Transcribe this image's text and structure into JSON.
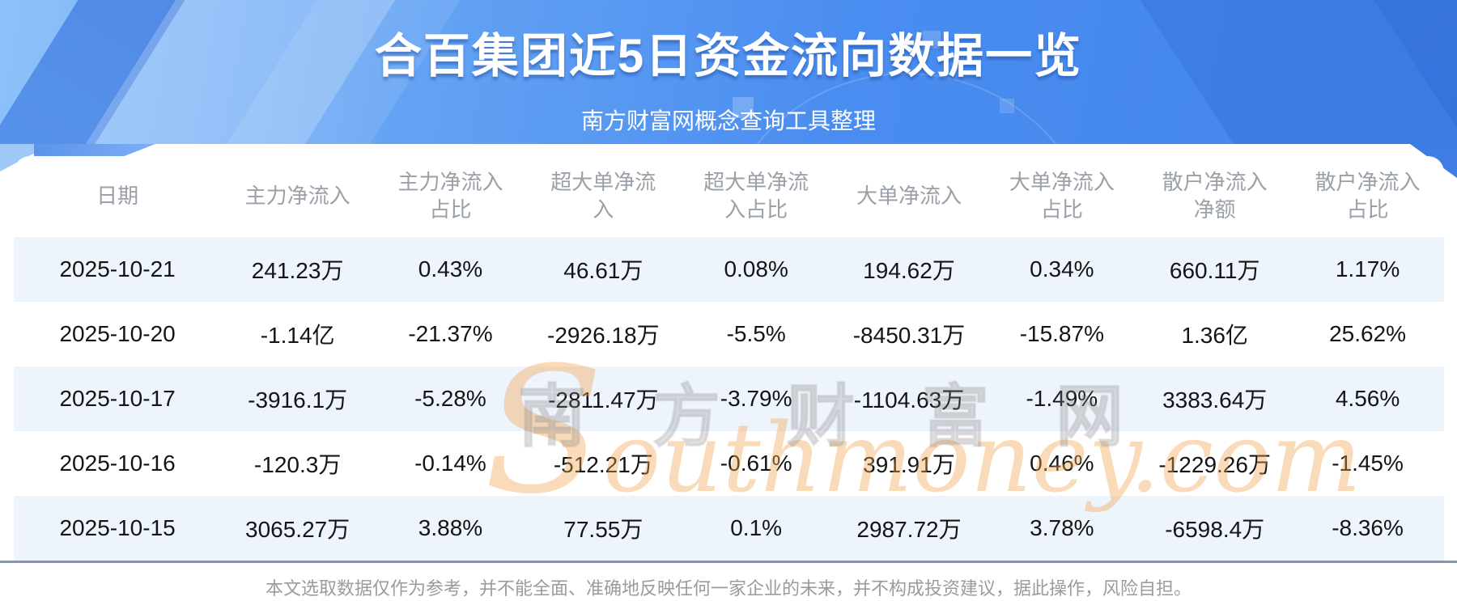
{
  "hero": {
    "title": "合百集团近5日资金流向数据一览",
    "subtitle": "南方财富网概念查询工具整理"
  },
  "watermark": {
    "cn": "南方财富网",
    "en": "Southmoney.com"
  },
  "chart_data": {
    "type": "table",
    "title": "合百集团近5日资金流向数据一览",
    "columns": [
      "日期",
      "主力净流入",
      "主力净流入占比",
      "超大单净流入",
      "超大单净流入占比",
      "大单净流入",
      "大单净流入占比",
      "散户净流入净额",
      "散户净流入占比"
    ],
    "rows": [
      [
        "2025-10-21",
        "241.23万",
        "0.43%",
        "46.61万",
        "0.08%",
        "194.62万",
        "0.34%",
        "660.11万",
        "1.17%"
      ],
      [
        "2025-10-20",
        "-1.14亿",
        "-21.37%",
        "-2926.18万",
        "-5.5%",
        "-8450.31万",
        "-15.87%",
        "1.36亿",
        "25.62%"
      ],
      [
        "2025-10-17",
        "-3916.1万",
        "-5.28%",
        "-2811.47万",
        "-3.79%",
        "-1104.63万",
        "-1.49%",
        "3383.64万",
        "4.56%"
      ],
      [
        "2025-10-16",
        "-120.3万",
        "-0.14%",
        "-512.21万",
        "-0.61%",
        "391.91万",
        "0.46%",
        "-1229.26万",
        "-1.45%"
      ],
      [
        "2025-10-15",
        "3065.27万",
        "3.88%",
        "77.55万",
        "0.1%",
        "2987.72万",
        "3.78%",
        "-6598.4万",
        "-8.36%"
      ]
    ]
  },
  "footer": {
    "disclaimer": "本文选取数据仅作为参考，并不能全面、准确地反映任何一家企业的未来，并不构成投资建议，据此操作，风险自担。"
  },
  "colors": {
    "hero_blue": "#4a8df0",
    "row_stripe": "#edf4fc",
    "header_text": "#9aa0a8",
    "watermark_orange": "#f3a650",
    "divider": "#8296b4"
  }
}
